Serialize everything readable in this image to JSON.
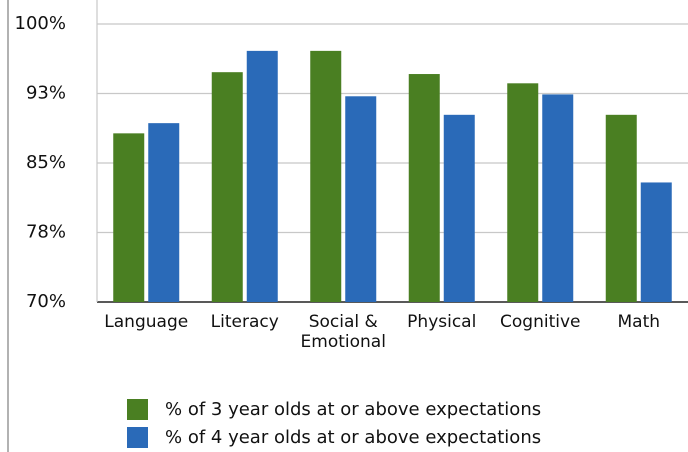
{
  "chart_data": {
    "type": "bar",
    "categories": [
      "Language",
      "Literacy",
      "Social & Emotional",
      "Physical",
      "Cognitive",
      "Math"
    ],
    "series": [
      {
        "name": "% of 3 year olds at or above expectations",
        "color": "#4a7f22",
        "values": [
          88.2,
          94.8,
          97.1,
          94.6,
          93.6,
          90.2
        ]
      },
      {
        "name": "% of 4 year olds at or above expectations",
        "color": "#2a6ab8",
        "values": [
          89.3,
          97.1,
          92.2,
          90.2,
          92.4,
          82.9
        ]
      }
    ],
    "ylim": [
      70,
      100
    ],
    "yticks": [
      {
        "value": 70,
        "label": "70%"
      },
      {
        "value": 77.5,
        "label": "78%"
      },
      {
        "value": 85,
        "label": "85%"
      },
      {
        "value": 92.5,
        "label": "93%"
      },
      {
        "value": 100,
        "label": "100%"
      }
    ],
    "grid": true
  }
}
